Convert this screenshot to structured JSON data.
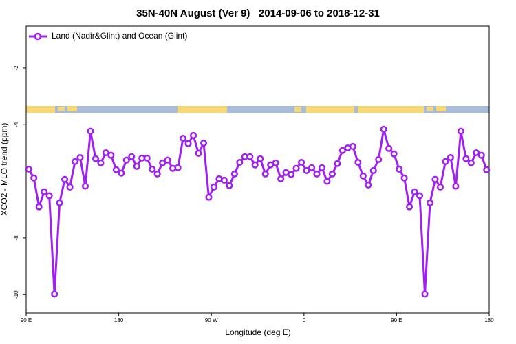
{
  "chart_data": {
    "type": "line",
    "title": "35N-40N August (Ver 9)   2014-09-06 to 2018-12-31",
    "x_label": "Longitude (deg E)",
    "y_label": "XCO2 - MLO trend (ppm)",
    "xlim": [
      90,
      540
    ],
    "ylim": [
      -10.65,
      -0.52
    ],
    "xticks": [
      {
        "value": 90,
        "label": "90 E"
      },
      {
        "value": 180,
        "label": "180"
      },
      {
        "value": 270,
        "label": "90 W"
      },
      {
        "value": 360,
        "label": "0"
      },
      {
        "value": 450,
        "label": "90 E"
      },
      {
        "value": 540,
        "label": "180"
      }
    ],
    "yticks": [
      -2,
      -4,
      -8,
      -10
    ],
    "legend": "top-left",
    "x": [
      92.5,
      97.5,
      102.5,
      107.5,
      112.5,
      117.5,
      122.5,
      127.5,
      132.5,
      137.5,
      142.5,
      147.5,
      152.5,
      157.5,
      162.5,
      167.5,
      172.5,
      177.5,
      182.5,
      187.5,
      192.5,
      197.5,
      202.5,
      207.5,
      212.5,
      217.5,
      222.5,
      227.5,
      232.5,
      237.5,
      242.5,
      247.5,
      252.5,
      257.5,
      262.5,
      267.5,
      272.5,
      277.5,
      282.5,
      287.5,
      292.5,
      297.5,
      302.5,
      307.5,
      312.5,
      317.5,
      322.5,
      327.5,
      332.5,
      337.5,
      342.5,
      347.5,
      352.5,
      357.5,
      362.5,
      367.5,
      372.5,
      377.5,
      382.5,
      387.5,
      392.5,
      397.5,
      402.5,
      407.5,
      412.5,
      417.5,
      422.5,
      427.5,
      432.5,
      437.5,
      442.5,
      447.5,
      452.5,
      457.5,
      462.5,
      467.5,
      472.5,
      477.5,
      482.5,
      487.5,
      492.5,
      497.5,
      502.5,
      507.5,
      512.5,
      517.5,
      522.5,
      527.5,
      532.5,
      537.5
    ],
    "series": [
      {
        "name": "Land (Nadir&Glint) and Ocean (Glint)",
        "color": "#a020f0",
        "values": [
          -5.57,
          -5.88,
          -6.9,
          -6.37,
          -6.51,
          -9.98,
          -6.76,
          -5.93,
          -6.2,
          -5.3,
          -5.16,
          -6.17,
          -4.23,
          -5.2,
          -5.35,
          -4.99,
          -5.08,
          -5.59,
          -5.71,
          -5.25,
          -5.13,
          -5.47,
          -5.18,
          -5.18,
          -5.57,
          -5.74,
          -5.35,
          -5.25,
          -5.54,
          -5.52,
          -4.48,
          -4.67,
          -4.38,
          -5.01,
          -4.65,
          -6.56,
          -6.2,
          -5.91,
          -5.96,
          -6.15,
          -5.74,
          -5.33,
          -5.13,
          -5.13,
          -5.42,
          -5.2,
          -5.74,
          -5.42,
          -5.35,
          -5.91,
          -5.69,
          -5.76,
          -5.54,
          -5.33,
          -5.62,
          -5.52,
          -5.74,
          -5.52,
          -6.0,
          -5.74,
          -5.37,
          -4.91,
          -4.82,
          -4.77,
          -5.33,
          -5.81,
          -6.13,
          -5.62,
          -5.23,
          -4.16,
          -4.84,
          -5.03,
          -5.57,
          -5.88,
          -6.9,
          -6.37,
          -6.51,
          -9.98,
          -6.76,
          -5.93,
          -6.2,
          -5.3,
          -5.16,
          -6.17,
          -4.23,
          -5.2,
          -5.35,
          -4.99,
          -5.08,
          -5.59
        ]
      }
    ]
  }
}
